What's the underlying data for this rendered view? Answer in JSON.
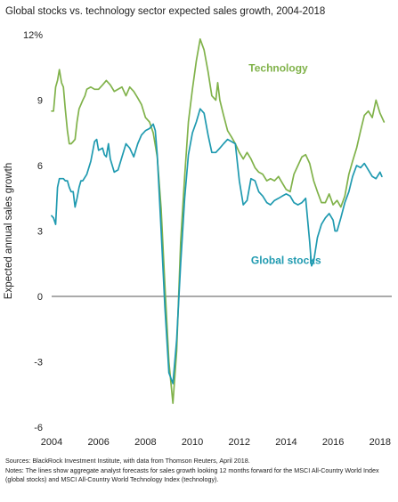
{
  "title": "Global stocks vs. technology sector expected sales growth, 2004-2018",
  "sources": "Sources: BlackRock Investment Institute, with data from Thomson Reuters, April 2018.",
  "notes": "Notes: The lines show aggregate analyst forecasts for sales growth looking 12 months forward for the MSCI All-Country World Index (global stocks) and MSCI All-Country World Technology Index (technology).",
  "chart_data": {
    "type": "line",
    "title": "Global stocks vs. technology sector expected sales growth, 2004-2018",
    "ylabel": "Expected annual sales growth",
    "xlabel": "",
    "xlim": [
      2004,
      2018.5
    ],
    "ylim": [
      -6,
      12
    ],
    "y_ticks": [
      -6,
      -3,
      0,
      3,
      6,
      9,
      12
    ],
    "y_tick_labels": [
      "-6",
      "-3",
      "0",
      "3",
      "6",
      "9",
      "12%"
    ],
    "x_ticks": [
      2004,
      2006,
      2008,
      2010,
      2012,
      2014,
      2016,
      2018
    ],
    "x_tick_labels": [
      "2004",
      "2006",
      "2008",
      "2010",
      "2012",
      "2014",
      "2016",
      "2018"
    ],
    "grid": false,
    "zero_line": true,
    "series": [
      {
        "name": "Technology",
        "color": "#80b24a",
        "points": [
          [
            2004.0,
            8.5
          ],
          [
            2004.08,
            8.5
          ],
          [
            2004.17,
            9.6
          ],
          [
            2004.25,
            9.9
          ],
          [
            2004.33,
            10.4
          ],
          [
            2004.42,
            9.8
          ],
          [
            2004.5,
            9.6
          ],
          [
            2004.58,
            8.6
          ],
          [
            2004.67,
            7.6
          ],
          [
            2004.75,
            7.0
          ],
          [
            2004.83,
            7.0
          ],
          [
            2004.92,
            7.1
          ],
          [
            2005.0,
            7.2
          ],
          [
            2005.08,
            8.0
          ],
          [
            2005.17,
            8.6
          ],
          [
            2005.25,
            8.8
          ],
          [
            2005.33,
            9.0
          ],
          [
            2005.42,
            9.2
          ],
          [
            2005.5,
            9.5
          ],
          [
            2005.67,
            9.6
          ],
          [
            2005.83,
            9.5
          ],
          [
            2006.0,
            9.5
          ],
          [
            2006.17,
            9.7
          ],
          [
            2006.33,
            9.9
          ],
          [
            2006.5,
            9.7
          ],
          [
            2006.67,
            9.4
          ],
          [
            2006.83,
            9.5
          ],
          [
            2007.0,
            9.6
          ],
          [
            2007.17,
            9.2
          ],
          [
            2007.33,
            9.6
          ],
          [
            2007.5,
            9.4
          ],
          [
            2007.67,
            9.1
          ],
          [
            2007.83,
            8.8
          ],
          [
            2008.0,
            8.2
          ],
          [
            2008.17,
            8.0
          ],
          [
            2008.33,
            7.5
          ],
          [
            2008.5,
            6.4
          ],
          [
            2008.67,
            4.0
          ],
          [
            2008.83,
            0.5
          ],
          [
            2009.0,
            -3.0
          ],
          [
            2009.17,
            -4.9
          ],
          [
            2009.33,
            -2.5
          ],
          [
            2009.5,
            2.5
          ],
          [
            2009.67,
            5.5
          ],
          [
            2009.83,
            8.0
          ],
          [
            2010.0,
            9.5
          ],
          [
            2010.17,
            10.8
          ],
          [
            2010.33,
            11.8
          ],
          [
            2010.5,
            11.3
          ],
          [
            2010.67,
            10.3
          ],
          [
            2010.83,
            9.2
          ],
          [
            2011.0,
            9.0
          ],
          [
            2011.08,
            9.8
          ],
          [
            2011.17,
            9.0
          ],
          [
            2011.33,
            8.3
          ],
          [
            2011.5,
            7.6
          ],
          [
            2011.67,
            7.3
          ],
          [
            2011.83,
            7.0
          ],
          [
            2012.0,
            6.6
          ],
          [
            2012.17,
            6.3
          ],
          [
            2012.33,
            6.6
          ],
          [
            2012.5,
            6.3
          ],
          [
            2012.67,
            5.9
          ],
          [
            2012.83,
            5.7
          ],
          [
            2013.0,
            5.6
          ],
          [
            2013.17,
            5.3
          ],
          [
            2013.33,
            5.4
          ],
          [
            2013.5,
            5.3
          ],
          [
            2013.67,
            5.5
          ],
          [
            2013.83,
            5.2
          ],
          [
            2014.0,
            4.9
          ],
          [
            2014.17,
            4.8
          ],
          [
            2014.33,
            5.6
          ],
          [
            2014.5,
            6.0
          ],
          [
            2014.67,
            6.4
          ],
          [
            2014.83,
            6.5
          ],
          [
            2015.0,
            6.1
          ],
          [
            2015.17,
            5.3
          ],
          [
            2015.33,
            4.8
          ],
          [
            2015.5,
            4.3
          ],
          [
            2015.67,
            4.3
          ],
          [
            2015.83,
            4.7
          ],
          [
            2016.0,
            4.2
          ],
          [
            2016.17,
            4.4
          ],
          [
            2016.33,
            4.1
          ],
          [
            2016.5,
            4.6
          ],
          [
            2016.67,
            5.6
          ],
          [
            2016.83,
            6.2
          ],
          [
            2017.0,
            6.8
          ],
          [
            2017.17,
            7.6
          ],
          [
            2017.33,
            8.3
          ],
          [
            2017.5,
            8.5
          ],
          [
            2017.67,
            8.2
          ],
          [
            2017.83,
            9.0
          ],
          [
            2018.0,
            8.4
          ],
          [
            2018.17,
            8.0
          ]
        ]
      },
      {
        "name": "Global stocks",
        "color": "#1f9ab0",
        "points": [
          [
            2004.0,
            3.7
          ],
          [
            2004.08,
            3.6
          ],
          [
            2004.17,
            3.3
          ],
          [
            2004.25,
            5.0
          ],
          [
            2004.33,
            5.4
          ],
          [
            2004.42,
            5.4
          ],
          [
            2004.5,
            5.4
          ],
          [
            2004.58,
            5.3
          ],
          [
            2004.67,
            5.3
          ],
          [
            2004.75,
            5.0
          ],
          [
            2004.83,
            4.8
          ],
          [
            2004.92,
            4.8
          ],
          [
            2005.0,
            4.1
          ],
          [
            2005.08,
            4.5
          ],
          [
            2005.17,
            5.0
          ],
          [
            2005.25,
            5.3
          ],
          [
            2005.33,
            5.3
          ],
          [
            2005.5,
            5.6
          ],
          [
            2005.67,
            6.2
          ],
          [
            2005.83,
            7.1
          ],
          [
            2005.92,
            7.2
          ],
          [
            2006.0,
            6.7
          ],
          [
            2006.17,
            6.8
          ],
          [
            2006.25,
            6.5
          ],
          [
            2006.33,
            6.4
          ],
          [
            2006.42,
            7.0
          ],
          [
            2006.5,
            6.3
          ],
          [
            2006.67,
            5.7
          ],
          [
            2006.83,
            5.8
          ],
          [
            2007.0,
            6.4
          ],
          [
            2007.17,
            7.0
          ],
          [
            2007.33,
            6.8
          ],
          [
            2007.5,
            6.4
          ],
          [
            2007.67,
            7.0
          ],
          [
            2007.83,
            7.4
          ],
          [
            2008.0,
            7.6
          ],
          [
            2008.17,
            7.7
          ],
          [
            2008.33,
            7.9
          ],
          [
            2008.42,
            7.6
          ],
          [
            2008.5,
            6.5
          ],
          [
            2008.67,
            3.0
          ],
          [
            2008.83,
            -0.5
          ],
          [
            2009.0,
            -3.5
          ],
          [
            2009.17,
            -4.0
          ],
          [
            2009.33,
            -2.0
          ],
          [
            2009.5,
            1.5
          ],
          [
            2009.67,
            4.5
          ],
          [
            2009.83,
            6.5
          ],
          [
            2010.0,
            7.5
          ],
          [
            2010.17,
            8.0
          ],
          [
            2010.33,
            8.6
          ],
          [
            2010.5,
            8.4
          ],
          [
            2010.67,
            7.4
          ],
          [
            2010.83,
            6.6
          ],
          [
            2011.0,
            6.6
          ],
          [
            2011.17,
            6.8
          ],
          [
            2011.33,
            7.0
          ],
          [
            2011.5,
            7.2
          ],
          [
            2011.67,
            7.1
          ],
          [
            2011.83,
            7.0
          ],
          [
            2012.0,
            5.3
          ],
          [
            2012.17,
            4.2
          ],
          [
            2012.33,
            4.4
          ],
          [
            2012.5,
            5.4
          ],
          [
            2012.67,
            5.3
          ],
          [
            2012.83,
            4.8
          ],
          [
            2013.0,
            4.6
          ],
          [
            2013.17,
            4.3
          ],
          [
            2013.33,
            4.2
          ],
          [
            2013.5,
            4.4
          ],
          [
            2013.67,
            4.5
          ],
          [
            2013.83,
            4.6
          ],
          [
            2014.0,
            4.7
          ],
          [
            2014.17,
            4.6
          ],
          [
            2014.33,
            4.3
          ],
          [
            2014.5,
            4.2
          ],
          [
            2014.67,
            4.3
          ],
          [
            2014.83,
            4.5
          ],
          [
            2015.0,
            2.5
          ],
          [
            2015.08,
            1.4
          ],
          [
            2015.17,
            1.6
          ],
          [
            2015.33,
            2.7
          ],
          [
            2015.5,
            3.3
          ],
          [
            2015.67,
            3.6
          ],
          [
            2015.83,
            3.8
          ],
          [
            2016.0,
            3.5
          ],
          [
            2016.08,
            3.0
          ],
          [
            2016.17,
            3.0
          ],
          [
            2016.33,
            3.6
          ],
          [
            2016.5,
            4.3
          ],
          [
            2016.67,
            4.8
          ],
          [
            2016.83,
            5.5
          ],
          [
            2017.0,
            6.0
          ],
          [
            2017.17,
            5.9
          ],
          [
            2017.33,
            6.1
          ],
          [
            2017.5,
            5.8
          ],
          [
            2017.67,
            5.5
          ],
          [
            2017.83,
            5.4
          ],
          [
            2018.0,
            5.7
          ],
          [
            2018.08,
            5.5
          ]
        ]
      }
    ],
    "annotations": [
      {
        "text": "Technology",
        "color": "#80b24a",
        "at": [
          2012.4,
          10.3
        ]
      },
      {
        "text": "Global stocks",
        "color": "#1f9ab0",
        "at": [
          2012.5,
          1.5
        ]
      }
    ]
  }
}
